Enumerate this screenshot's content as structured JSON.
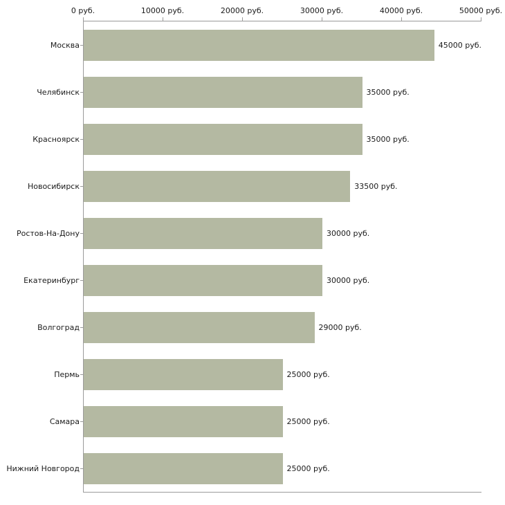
{
  "chart_data": {
    "type": "bar",
    "orientation": "horizontal",
    "title": "",
    "categories": [
      "Москва",
      "Челябинск",
      "Красноярск",
      "Новосибирск",
      "Ростов-На-Дону",
      "Екатеринбург",
      "Волгоград",
      "Пермь",
      "Самара",
      "Нижний Новгород"
    ],
    "values": [
      45000,
      35000,
      35000,
      33500,
      30000,
      30000,
      29000,
      25000,
      25000,
      25000
    ],
    "value_labels": [
      "45000 руб.",
      "35000 руб.",
      "35000 руб.",
      "33500 руб.",
      "30000 руб.",
      "30000 руб.",
      "29000 руб.",
      "25000 руб.",
      "25000 руб.",
      "25000 руб."
    ],
    "x_ticks": [
      0,
      10000,
      20000,
      30000,
      40000,
      50000
    ],
    "x_tick_labels": [
      "0 руб.",
      "10000 руб.",
      "20000 руб.",
      "30000 руб.",
      "40000 руб.",
      "50000 руб."
    ],
    "xlim": [
      0,
      50000
    ],
    "xlabel": "",
    "ylabel": "",
    "grid": false,
    "legend": false,
    "bar_color": "#b4b9a2",
    "axis_color": "#9a9a9a",
    "text_color": "#1a1a1a",
    "background_color": "#ffffff"
  }
}
